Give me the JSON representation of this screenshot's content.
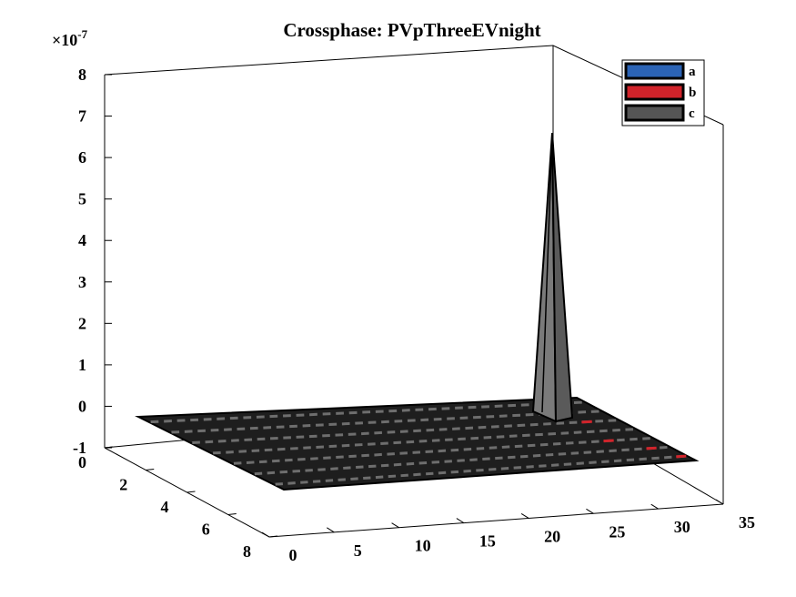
{
  "chart_data": {
    "type": "bar3",
    "title": "Crossphase: PVpThreeEVnight",
    "zscale_label": "×10",
    "zscale_exponent": "-7",
    "z_ticks": [
      "-1",
      "0",
      "1",
      "2",
      "3",
      "4",
      "5",
      "6",
      "7",
      "8"
    ],
    "y_ticks": [
      "0",
      "2",
      "4",
      "6",
      "8"
    ],
    "x_ticks": [
      "0",
      "5",
      "10",
      "15",
      "20",
      "25",
      "30",
      "35"
    ],
    "zlim": [
      -1,
      8
    ],
    "xlim": [
      0,
      35
    ],
    "ylim": [
      0,
      8
    ],
    "rows": 7,
    "columns": 33,
    "series": [
      {
        "name": "a",
        "color": "#2b63b5",
        "values": []
      },
      {
        "name": "b",
        "color": "#d1232a",
        "values": [
          {
            "row": 1,
            "col": 29,
            "z": 0
          },
          {
            "row": 2,
            "col": 30,
            "z": 0
          },
          {
            "row": 4,
            "col": 29,
            "z": 0
          },
          {
            "row": 5,
            "col": 31,
            "z": 0
          },
          {
            "row": 6,
            "col": 32,
            "z": 0
          }
        ]
      },
      {
        "name": "c",
        "color": "#555555",
        "values": [
          {
            "row": 1,
            "col": 29,
            "z": 7.0
          }
        ]
      }
    ],
    "baseline_value": 0
  }
}
